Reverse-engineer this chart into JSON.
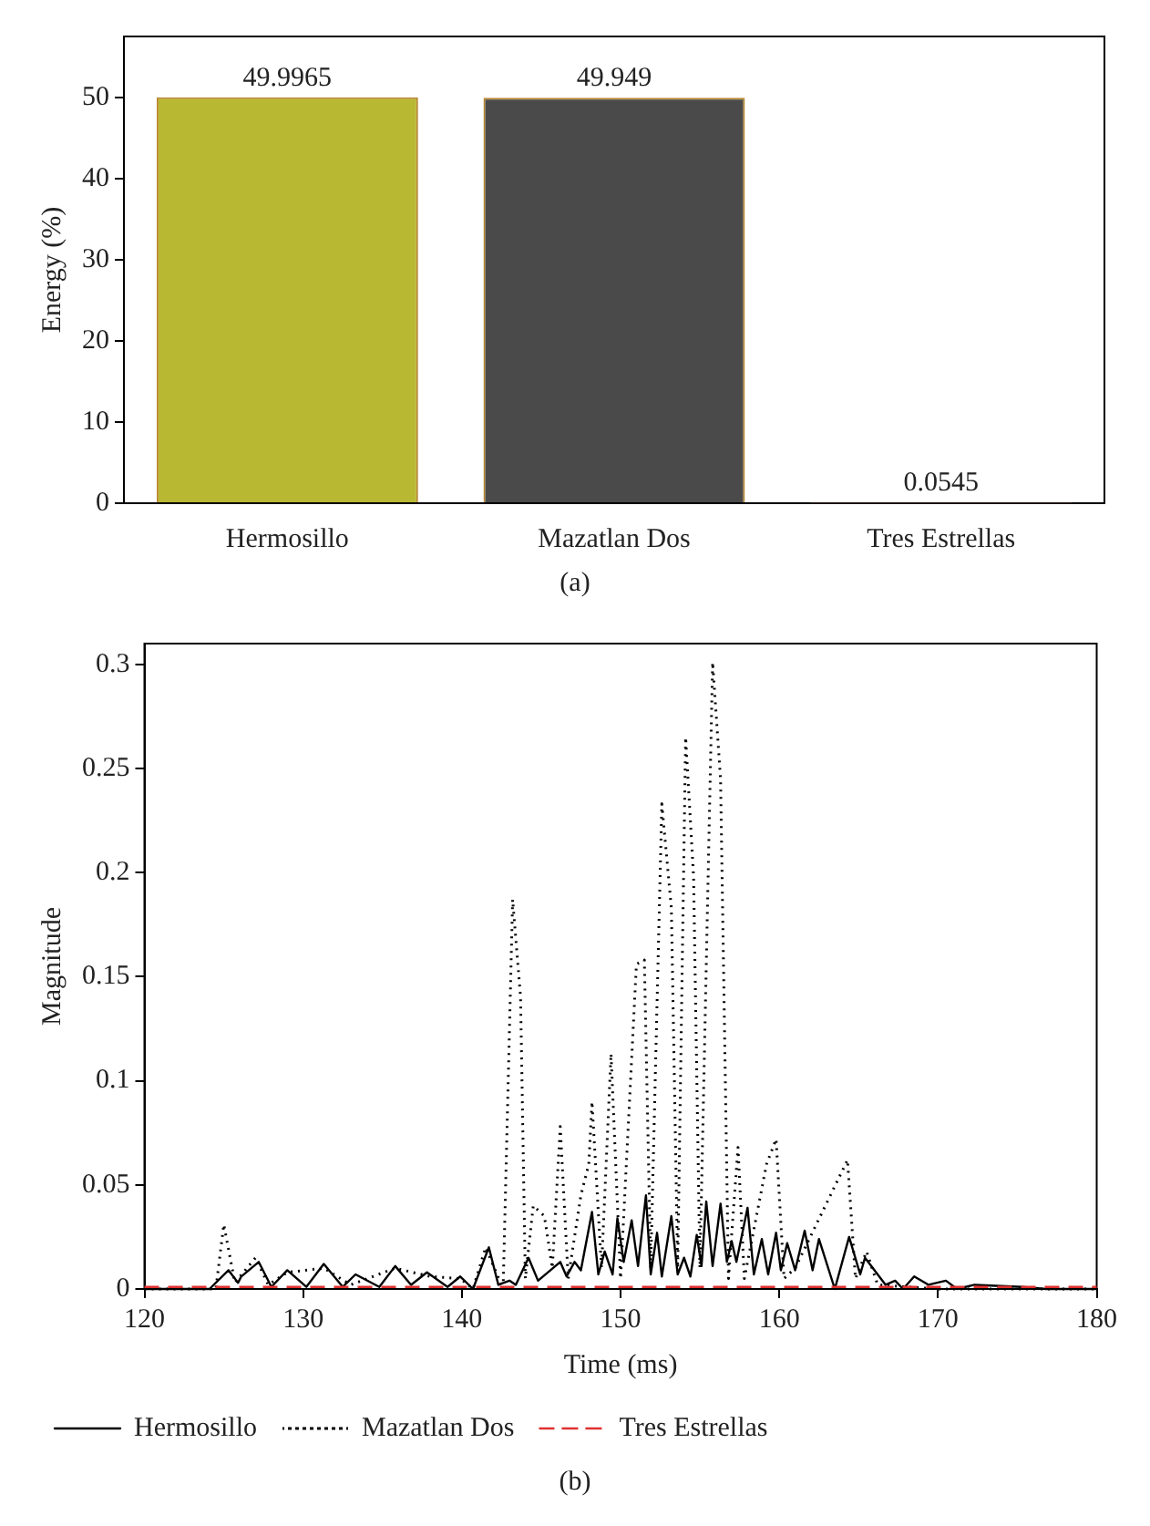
{
  "chart_data": [
    {
      "type": "bar",
      "categories": [
        "Hermosillo",
        "Mazatlan Dos",
        "Tres Estrellas"
      ],
      "values": [
        49.9965,
        49.949,
        0.0545
      ],
      "colors": [
        "#b8b832",
        "#4a4a4a",
        "#cc3333"
      ],
      "ylabel": "Energy (%)",
      "ylim": [
        0,
        57.5
      ],
      "yticks": [
        0,
        10,
        20,
        30,
        40,
        50
      ],
      "grid": false,
      "data_labels": true,
      "annotations": [
        "(a)"
      ]
    },
    {
      "type": "line",
      "xlabel": "Time (ms)",
      "ylabel": "Magnitude",
      "xlim": [
        120,
        180
      ],
      "ylim": [
        0,
        0.31
      ],
      "xticks": [
        120,
        130,
        140,
        150,
        160,
        170,
        180
      ],
      "yticks": [
        0,
        0.05,
        0.1,
        0.15,
        0.2,
        0.25,
        0.3
      ],
      "grid": false,
      "marker": "none",
      "legend": "bottom",
      "annotations": [
        "(b)"
      ],
      "series": [
        {
          "name": "Hermosillo",
          "color": "#000000",
          "line_style": "solid",
          "x": [
            120,
            124.1,
            125.3,
            125.9,
            126.1,
            127.2,
            128,
            129,
            130.2,
            131.3,
            132.5,
            133.3,
            134.8,
            135.8,
            136.8,
            137.8,
            139.1,
            139.9,
            140.7,
            141.7,
            142.3,
            143,
            143.4,
            144.2,
            144.8,
            146.2,
            146.6,
            147.1,
            147.5,
            148.2,
            148.6,
            149,
            149.5,
            149.8,
            150.2,
            150.7,
            151.1,
            151.6,
            151.9,
            152.3,
            152.6,
            153.2,
            153.6,
            154,
            154.4,
            154.8,
            155.1,
            155.4,
            155.8,
            156.3,
            156.7,
            157,
            157.3,
            158,
            158.4,
            158.9,
            159.3,
            159.8,
            160.1,
            160.5,
            161,
            161.6,
            162.1,
            162.5,
            163.5,
            164.4,
            165.1,
            165.4,
            166.7,
            167.3,
            167.8,
            168.5,
            169.4,
            170.5,
            171.2,
            172.3,
            175.3,
            176.8,
            180
          ],
          "values": [
            0,
            0,
            0.009,
            0.003,
            0.006,
            0.013,
            0.001,
            0.009,
            0.001,
            0.012,
            0.001,
            0.007,
            0.001,
            0.011,
            0.002,
            0.008,
            0.001,
            0.006,
            0,
            0.02,
            0.002,
            0.004,
            0.002,
            0.015,
            0.004,
            0.013,
            0.006,
            0.013,
            0.009,
            0.037,
            0.007,
            0.018,
            0.007,
            0.034,
            0.013,
            0.033,
            0.011,
            0.045,
            0.007,
            0.027,
            0.006,
            0.035,
            0.007,
            0.015,
            0.006,
            0.026,
            0.011,
            0.042,
            0.011,
            0.041,
            0.013,
            0.023,
            0.013,
            0.039,
            0.007,
            0.024,
            0.007,
            0.027,
            0.009,
            0.022,
            0.009,
            0.028,
            0.009,
            0.024,
            0,
            0.025,
            0.007,
            0.015,
            0.002,
            0.004,
            0,
            0.006,
            0.002,
            0.004,
            0,
            0.002,
            0.001,
            0,
            0
          ]
        },
        {
          "name": "Mazatlan Dos",
          "color": "#000000",
          "line_style": "dotted",
          "x": [
            120,
            124.5,
            125,
            125.7,
            127,
            127.8,
            129,
            131.3,
            133,
            135.8,
            138,
            139.9,
            140.7,
            141.5,
            142.6,
            143.2,
            143.7,
            144,
            144.5,
            145.2,
            145.7,
            146.2,
            146.7,
            147.5,
            148,
            148.2,
            148.8,
            149.4,
            150,
            151,
            151.5,
            151.9,
            152.6,
            153.2,
            153.6,
            154.1,
            154.6,
            155,
            155.8,
            156.3,
            156.8,
            157.4,
            157.8,
            159.2,
            159.8,
            160.3,
            161,
            164.3,
            164.8,
            165.5,
            166.2,
            170,
            180
          ],
          "values": [
            0,
            0,
            0.031,
            0.003,
            0.015,
            0.002,
            0.008,
            0.01,
            0.002,
            0.01,
            0.006,
            0.005,
            0,
            0.02,
            0,
            0.187,
            0.14,
            0.005,
            0.04,
            0.035,
            0.01,
            0.078,
            0.005,
            0.045,
            0.06,
            0.09,
            0.01,
            0.113,
            0.005,
            0.156,
            0.158,
            0.01,
            0.233,
            0.183,
            0.01,
            0.265,
            0.198,
            0.01,
            0.301,
            0.245,
            0.005,
            0.068,
            0.005,
            0.06,
            0.072,
            0.005,
            0.01,
            0.062,
            0.005,
            0.018,
            0.002,
            0,
            0
          ]
        },
        {
          "name": "Tres Estrellas",
          "color": "#e03030",
          "line_style": "dashed",
          "x": [
            120,
            180
          ],
          "values": [
            0.001,
            0.001
          ]
        }
      ]
    }
  ]
}
